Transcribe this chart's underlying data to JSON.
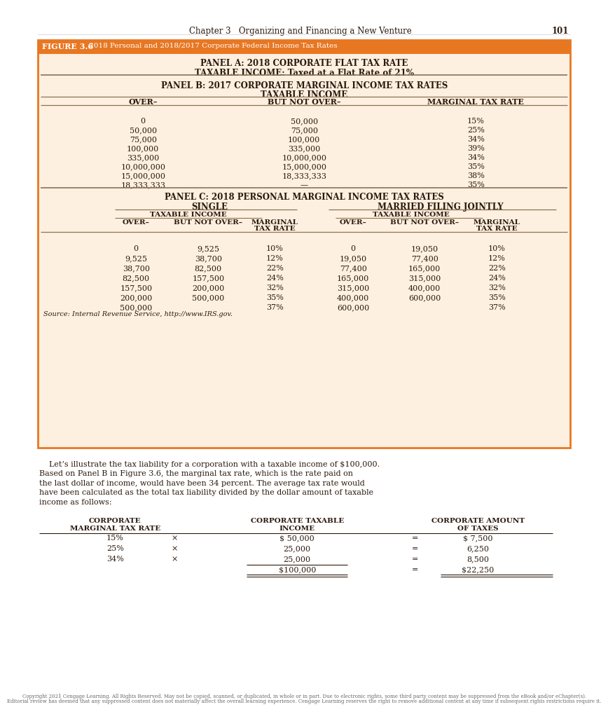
{
  "page_header": "Chapter 3   Organizing and Financing a New Venture",
  "page_number": "101",
  "figure_label": "FIGURE 3.6",
  "figure_title": " 2018 Personal and 2018/2017 Corporate Federal Income Tax Rates",
  "panel_a_title1": "PANEL A: 2018 CORPORATE FLAT TAX RATE",
  "panel_a_title2": "TAXABLE INCOME: Taxed at a Flat Rate of 21%",
  "panel_b_title1": "PANEL B: 2017 CORPORATE MARGINAL INCOME TAX RATES",
  "panel_b_title2": "TAXABLE INCOME",
  "panel_b_col1": "OVER–",
  "panel_b_col2": "BUT NOT OVER–",
  "panel_b_col3": "MARGINAL TAX RATE",
  "panel_b_rows": [
    [
      "0",
      "50,000",
      "15%"
    ],
    [
      "50,000",
      "75,000",
      "25%"
    ],
    [
      "75,000",
      "100,000",
      "34%"
    ],
    [
      "100,000",
      "335,000",
      "39%"
    ],
    [
      "335,000",
      "10,000,000",
      "34%"
    ],
    [
      "10,000,000",
      "15,000,000",
      "35%"
    ],
    [
      "15,000,000",
      "18,333,333",
      "38%"
    ],
    [
      "18,333,333",
      "—",
      "35%"
    ]
  ],
  "panel_c_title": "PANEL C: 2018 PERSONAL MARGINAL INCOME TAX RATES",
  "panel_c_single_header": "SINGLE",
  "panel_c_married_header": "MARRIED FILING JOINTLY",
  "panel_c_ti_header": "TAXABLE INCOME",
  "panel_c_rows": [
    [
      "0",
      "9,525",
      "10%",
      "0",
      "19,050",
      "10%"
    ],
    [
      "9,525",
      "38,700",
      "12%",
      "19,050",
      "77,400",
      "12%"
    ],
    [
      "38,700",
      "82,500",
      "22%",
      "77,400",
      "165,000",
      "22%"
    ],
    [
      "82,500",
      "157,500",
      "24%",
      "165,000",
      "315,000",
      "24%"
    ],
    [
      "157,500",
      "200,000",
      "32%",
      "315,000",
      "400,000",
      "32%"
    ],
    [
      "200,000",
      "500,000",
      "35%",
      "400,000",
      "600,000",
      "35%"
    ],
    [
      "500,000",
      "",
      "37%",
      "600,000",
      "",
      "37%"
    ]
  ],
  "source_text": "Source: Internal Revenue Service, http://www.IRS.gov.",
  "body_lines": [
    "    Let’s illustrate the tax liability for a corporation with a taxable income of $100,000.",
    "Based on Panel B in Figure 3.6, the marginal tax rate, which is the rate paid on",
    "the last dollar of income, would have been 34 percent. The average tax rate would",
    "have been calculated as the total tax liability divided by the dollar amount of taxable",
    "income as follows:"
  ],
  "calc_rows": [
    [
      "15%",
      "×",
      "$ 50,000",
      "=",
      "$ 7,500"
    ],
    [
      "25%",
      "×",
      "25,000",
      "=",
      "6,250"
    ],
    [
      "34%",
      "×",
      "25,000",
      "=",
      "8,500"
    ],
    [
      "",
      "",
      "$100,000",
      "=",
      "$22,250"
    ]
  ],
  "footer_text": "Copyright 2021 Cengage Learning. All Rights Reserved. May not be copied, scanned, or duplicated, in whole or in part. Due to electronic rights, some third party content may be suppressed from the eBook and/or eChapter(s).\nEditorial review has deemed that any suppressed content does not materially affect the overall learning experience. Cengage Learning reserves the right to remove additional content at any time if subsequent rights restrictions require it.",
  "bg_color": "#FDF0E0",
  "header_bg": "#E87722",
  "page_bg": "#FFFFFF",
  "figure_border": "#E87722",
  "text_color": "#2C1A0E",
  "line_color": "#8B7355"
}
